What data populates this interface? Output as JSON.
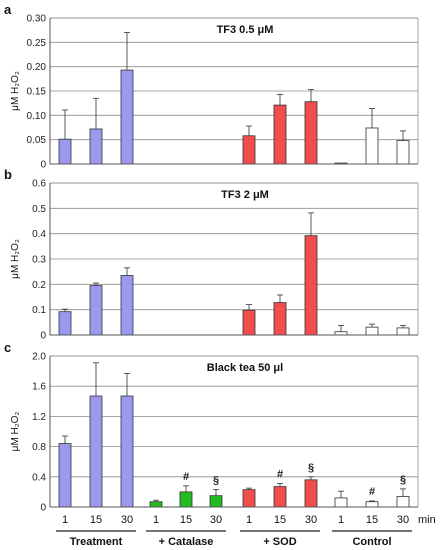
{
  "figure": {
    "x_tick_labels": [
      "1",
      "15",
      "30",
      "1",
      "15",
      "30",
      "1",
      "15",
      "30",
      "1",
      "15",
      "30"
    ],
    "x_unit": "min",
    "groups": [
      "Treatment",
      "+ Catalase",
      "+ SOD",
      "Control"
    ]
  },
  "chart_data": [
    {
      "type": "bar",
      "panel_letter": "a",
      "title": "TF3 0.5 μM",
      "ylabel": "μM H₂O₂",
      "ylim": [
        0,
        0.3
      ],
      "yticks": [
        "0",
        "0.05",
        "0.10",
        "0.15",
        "0.20",
        "0.25",
        "0.30"
      ],
      "grid": true,
      "groups": [
        "Treatment",
        "+ Catalase",
        "+ SOD",
        "Control"
      ],
      "categories": [
        "1",
        "15",
        "30"
      ],
      "series": [
        {
          "group": "Treatment",
          "color": "#9999ee",
          "values": [
            0.051,
            0.072,
            0.193
          ],
          "errors": [
            0.06,
            0.063,
            0.077
          ],
          "marks": [
            "",
            "",
            ""
          ]
        },
        {
          "group": "+ Catalase",
          "color": "#22bb22",
          "values": [
            0,
            0,
            0
          ],
          "errors": [
            0,
            0,
            0
          ],
          "marks": [
            "",
            "",
            ""
          ]
        },
        {
          "group": "+ SOD",
          "color": "#f24d4d",
          "values": [
            0.058,
            0.121,
            0.128
          ],
          "errors": [
            0.02,
            0.022,
            0.025
          ],
          "marks": [
            "",
            "",
            ""
          ]
        },
        {
          "group": "Control",
          "color": "#ffffff",
          "values": [
            0.002,
            0.074,
            0.048
          ],
          "errors": [
            0,
            0.04,
            0.02
          ],
          "marks": [
            "",
            "",
            ""
          ]
        }
      ]
    },
    {
      "type": "bar",
      "panel_letter": "b",
      "title": "TF3 2 μM",
      "ylabel": "μM H₂O₂",
      "ylim": [
        0,
        0.6
      ],
      "yticks": [
        "0",
        "0.1",
        "0.2",
        "0.3",
        "0.4",
        "0.5",
        "0.6"
      ],
      "grid": true,
      "groups": [
        "Treatment",
        "+ Catalase",
        "+ SOD",
        "Control"
      ],
      "categories": [
        "1",
        "15",
        "30"
      ],
      "series": [
        {
          "group": "Treatment",
          "color": "#9999ee",
          "values": [
            0.092,
            0.195,
            0.235
          ],
          "errors": [
            0.01,
            0.01,
            0.03
          ],
          "marks": [
            "",
            "",
            ""
          ]
        },
        {
          "group": "+ Catalase",
          "color": "#22bb22",
          "values": [
            0,
            0,
            0
          ],
          "errors": [
            0,
            0,
            0
          ],
          "marks": [
            "",
            "",
            ""
          ]
        },
        {
          "group": "+ SOD",
          "color": "#f24d4d",
          "values": [
            0.098,
            0.128,
            0.392
          ],
          "errors": [
            0.022,
            0.03,
            0.09
          ],
          "marks": [
            "",
            "",
            ""
          ]
        },
        {
          "group": "Control",
          "color": "#ffffff",
          "values": [
            0.013,
            0.031,
            0.028
          ],
          "errors": [
            0.025,
            0.012,
            0.01
          ],
          "marks": [
            "",
            "",
            ""
          ]
        }
      ]
    },
    {
      "type": "bar",
      "panel_letter": "c",
      "title": "Black tea 50 μl",
      "ylabel": "μM H₂O₂",
      "ylim": [
        0,
        2.0
      ],
      "yticks": [
        "0",
        "0.4",
        "0.8",
        "1.2",
        "1.6",
        "2.0"
      ],
      "grid": true,
      "groups": [
        "Treatment",
        "+ Catalase",
        "+ SOD",
        "Control"
      ],
      "categories": [
        "1",
        "15",
        "30"
      ],
      "series": [
        {
          "group": "Treatment",
          "color": "#9999ee",
          "values": [
            0.84,
            1.47,
            1.47
          ],
          "errors": [
            0.1,
            0.44,
            0.3
          ],
          "marks": [
            "",
            "",
            ""
          ]
        },
        {
          "group": "+ Catalase",
          "color": "#22bb22",
          "values": [
            0.07,
            0.2,
            0.15
          ],
          "errors": [
            0.02,
            0.08,
            0.08
          ],
          "marks": [
            "",
            "#",
            "§"
          ]
        },
        {
          "group": "+ SOD",
          "color": "#f24d4d",
          "values": [
            0.23,
            0.27,
            0.36
          ],
          "errors": [
            0.02,
            0.04,
            0.04
          ],
          "marks": [
            "",
            "#",
            "§"
          ]
        },
        {
          "group": "Control",
          "color": "#ffffff",
          "values": [
            0.12,
            0.07,
            0.14
          ],
          "errors": [
            0.09,
            0.01,
            0.1
          ],
          "marks": [
            "",
            "#",
            "§"
          ]
        }
      ]
    }
  ]
}
